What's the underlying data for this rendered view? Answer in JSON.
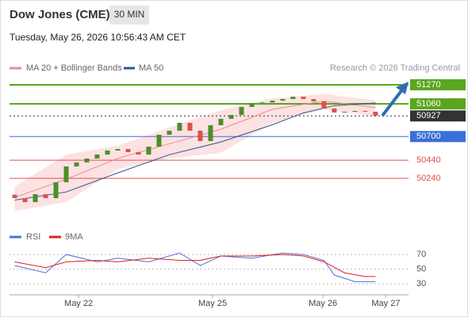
{
  "header": {
    "title": "Dow Jones (CME)",
    "timeframe": "30 MIN",
    "date": "Tuesday, May 26, 2026 10:56:43 AM CET"
  },
  "chart_data": [
    {
      "type": "candlestick",
      "credit": "Research © 2026 Trading Central",
      "xlim": [
        -0.5,
        38.2
      ],
      "ylim": [
        49760,
        51418
      ],
      "open": [
        50060,
        50022,
        49978,
        50066,
        50022,
        50197,
        50371,
        50415,
        50458,
        50502,
        50546,
        50563,
        50528,
        50502,
        50589,
        50720,
        50764,
        50851,
        50764,
        50650,
        50825,
        50895,
        50938,
        51026,
        51069,
        51075,
        51095,
        51113,
        51139,
        51113,
        51087,
        51008,
        50965,
        50973,
        50982,
        50973
      ],
      "close": [
        50022,
        49978,
        50066,
        50022,
        50197,
        50371,
        50415,
        50458,
        50502,
        50546,
        50563,
        50528,
        50502,
        50589,
        50720,
        50764,
        50851,
        50764,
        50650,
        50825,
        50895,
        50938,
        51026,
        51069,
        51075,
        51095,
        51113,
        51139,
        51113,
        51087,
        51008,
        50965,
        50973,
        50982,
        50973,
        50930
      ],
      "up_color": "#4a8f2a",
      "down_color": "#d9534f",
      "series": [
        {
          "name": "MA 20 + Bollinger Bands",
          "color": "#f08a8a",
          "x": [
            0,
            5,
            10,
            15,
            20,
            25,
            30,
            35
          ],
          "values": [
            50030,
            50230,
            50460,
            50620,
            50780,
            51000,
            51090,
            51020
          ]
        },
        {
          "name": "MA 50",
          "color": "#2f5597",
          "x": [
            0,
            5,
            10,
            15,
            20,
            25,
            28,
            31,
            35
          ],
          "values": [
            50000,
            50090,
            50300,
            50500,
            50640,
            50830,
            50960,
            51040,
            51070
          ]
        }
      ],
      "bands": {
        "color": "#fbd5d5",
        "x": [
          0,
          5,
          10,
          15,
          20,
          25,
          30,
          35
        ],
        "upper": [
          50150,
          50500,
          50600,
          50800,
          50990,
          51120,
          51170,
          51100
        ],
        "lower": [
          49880,
          49980,
          50340,
          50460,
          50520,
          50850,
          51000,
          50920
        ]
      },
      "levels": [
        51270,
        51060,
        50927,
        50700,
        50440,
        50240
      ],
      "level_colors": [
        "#5aa61e",
        "#5aa61e",
        "#333333",
        "#3a6fd8",
        "#e05050",
        "#e05050"
      ],
      "level_boxed": [
        true,
        true,
        true,
        true,
        false,
        false
      ],
      "xticks": [
        {
          "value": 6.2,
          "label": "May 22"
        },
        {
          "value": 19.2,
          "label": "May 25"
        },
        {
          "value": 29.9,
          "label": "May 26"
        },
        {
          "value": 36,
          "label": "May 27"
        }
      ]
    },
    {
      "type": "line",
      "xlim": [
        -0.5,
        38.2
      ],
      "ylim": [
        15,
        82
      ],
      "yticks": [
        70,
        50,
        30
      ],
      "series": [
        {
          "name": "RSI",
          "color": "#4a72d8",
          "x": [
            0,
            3,
            5,
            8,
            10,
            13,
            16,
            18,
            20,
            23,
            26,
            28,
            30,
            31,
            33,
            35
          ],
          "values": [
            55,
            45,
            70,
            60,
            65,
            60,
            72,
            55,
            68,
            65,
            72,
            70,
            62,
            42,
            33,
            33
          ]
        },
        {
          "name": "9MA",
          "color": "#e02020",
          "x": [
            0,
            3,
            5,
            8,
            10,
            13,
            16,
            18,
            20,
            23,
            26,
            28,
            30,
            32,
            34,
            35
          ],
          "values": [
            60,
            52,
            60,
            62,
            60,
            65,
            62,
            62,
            68,
            68,
            70,
            68,
            60,
            45,
            40,
            40
          ]
        }
      ]
    }
  ]
}
